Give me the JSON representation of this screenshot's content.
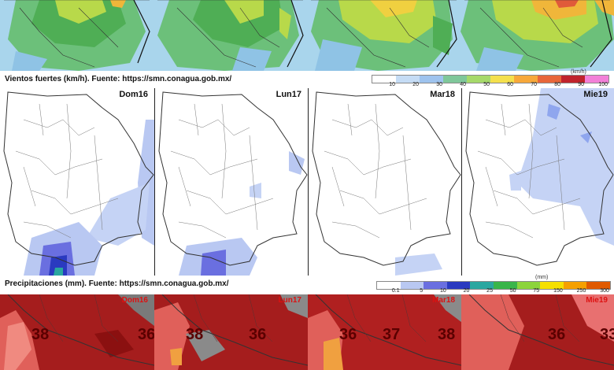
{
  "wind": {
    "title": "Vientos fuertes (km/h).  Fuente: https://smn.conagua.gob.mx/",
    "unit": "(km/h)",
    "ticks": [
      "10",
      "20",
      "30",
      "40",
      "50",
      "60",
      "70",
      "80",
      "90",
      "100"
    ],
    "colors": [
      "#ffffff",
      "#c5dcf5",
      "#9ec3ee",
      "#7fc79a",
      "#a6d96a",
      "#f4e04d",
      "#f7a83a",
      "#e8663a",
      "#c0232d",
      "#f280d8"
    ],
    "days": [
      "Dom16",
      "Lun17",
      "Mar18",
      "Mie19"
    ]
  },
  "precip": {
    "title": "Precipitaciones (mm).  Fuente: https://smn.conagua.gob.mx/",
    "unit": "(mm)",
    "ticks": [
      "0.1",
      "5",
      "10",
      "20",
      "25",
      "50",
      "75",
      "150",
      "250",
      "300"
    ],
    "colors": [
      "#ffffff",
      "#b9c8f2",
      "#6a6fe0",
      "#2a3ac0",
      "#2aa7a0",
      "#39b54a",
      "#8cd43c",
      "#f5e000",
      "#f5a000",
      "#e05a00"
    ],
    "days": [
      "Dom16",
      "Lun17",
      "Mar18",
      "Mie19"
    ]
  },
  "temp": {
    "days": [
      "Dom16",
      "Lun17",
      "Mar18",
      "Mie19"
    ],
    "values": [
      [
        "38",
        "36"
      ],
      [
        "38",
        "36"
      ],
      [
        "36",
        "37",
        "38"
      ],
      [
        "36",
        "33"
      ]
    ]
  }
}
